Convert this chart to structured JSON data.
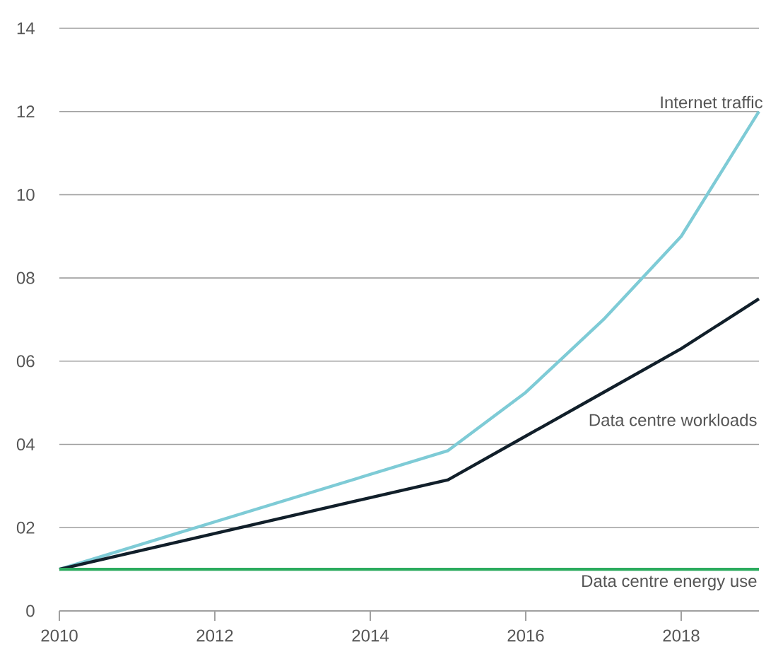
{
  "chart_data": {
    "type": "line",
    "xlim": [
      2010,
      2019
    ],
    "ylim": [
      0,
      14
    ],
    "xticks": [
      2010,
      2012,
      2014,
      2016,
      2018
    ],
    "yticks": [
      0,
      {
        "value": 2,
        "label": "02"
      },
      {
        "value": 4,
        "label": "04"
      },
      {
        "value": 6,
        "label": "06"
      },
      {
        "value": 8,
        "label": "08"
      },
      10,
      12,
      14
    ],
    "grid": "y",
    "marker": "none",
    "line_style": "solid",
    "series": [
      {
        "name": "Internet traffic",
        "color": "#7ecbd6",
        "x": [
          2010,
          2015,
          2016,
          2017,
          2018,
          2019
        ],
        "values": [
          1.0,
          3.85,
          5.25,
          7.0,
          9.0,
          12.0
        ]
      },
      {
        "name": "Data centre workloads",
        "color": "#111f2a",
        "x": [
          2010,
          2015,
          2016,
          2017,
          2018,
          2019
        ],
        "values": [
          1.0,
          3.15,
          4.2,
          5.25,
          6.3,
          7.5
        ]
      },
      {
        "name": "Data centre energy use",
        "color": "#2bab5e",
        "x": [
          2010,
          2019
        ],
        "values": [
          1.0,
          1.0
        ]
      }
    ]
  }
}
